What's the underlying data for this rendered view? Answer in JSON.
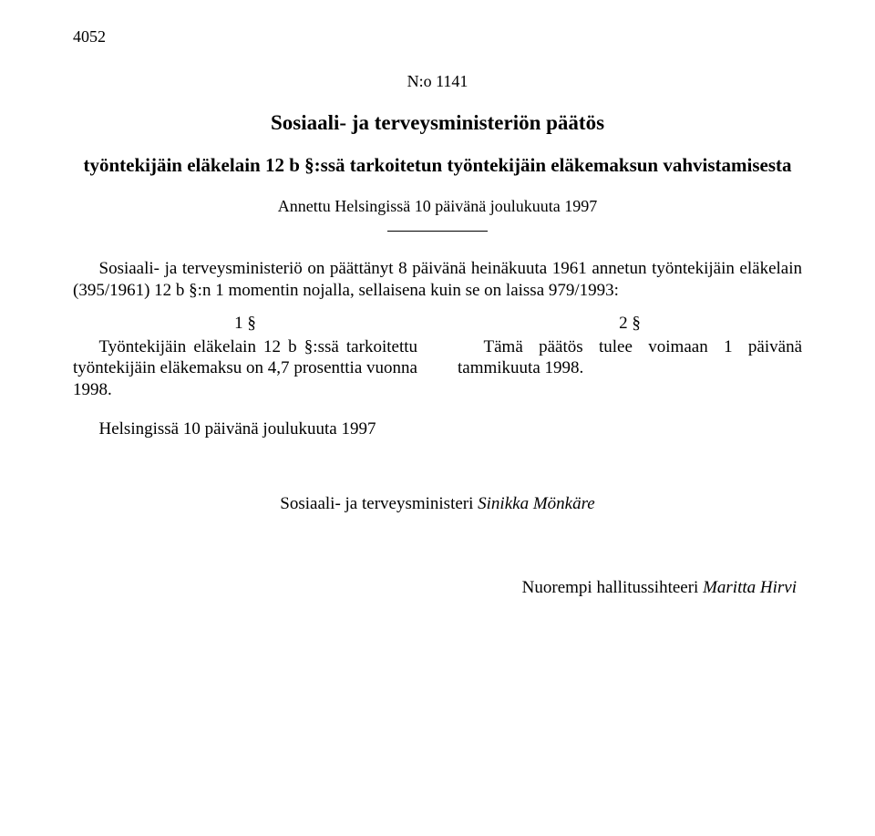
{
  "page_number": "4052",
  "doc_number": "N:o 1141",
  "title": "Sosiaali- ja terveysministeriön päätös",
  "subtitle": "työntekijäin eläkelain 12 b §:ssä tarkoitetun työntekijäin eläkemaksun vahvistamisesta",
  "given": "Annettu Helsingissä 10 päivänä joulukuuta 1997",
  "preamble": "Sosiaali- ja terveysministeriö on päättänyt 8 päivänä heinäkuuta 1961 annetun työntekijäin eläkelain (395/1961) 12 b §:n 1 momentin nojalla, sellaisena kuin se on laissa 979/1993:",
  "section1_num": "1 §",
  "section1_text": "Työntekijäin eläkelain 12 b §:ssä tarkoitettu työntekijäin eläkemaksu on 4,7 prosenttia vuonna 1998.",
  "section2_num": "2 §",
  "section2_text": "Tämä päätös tulee voimaan 1 päivänä tammikuuta 1998.",
  "place_date": "Helsingissä 10 päivänä joulukuuta 1997",
  "minister_label": "Sosiaali- ja terveysministeri ",
  "minister_name": "Sinikka Mönkäre",
  "secretary_label": "Nuorempi hallitussihteeri ",
  "secretary_name": "Maritta Hirvi"
}
